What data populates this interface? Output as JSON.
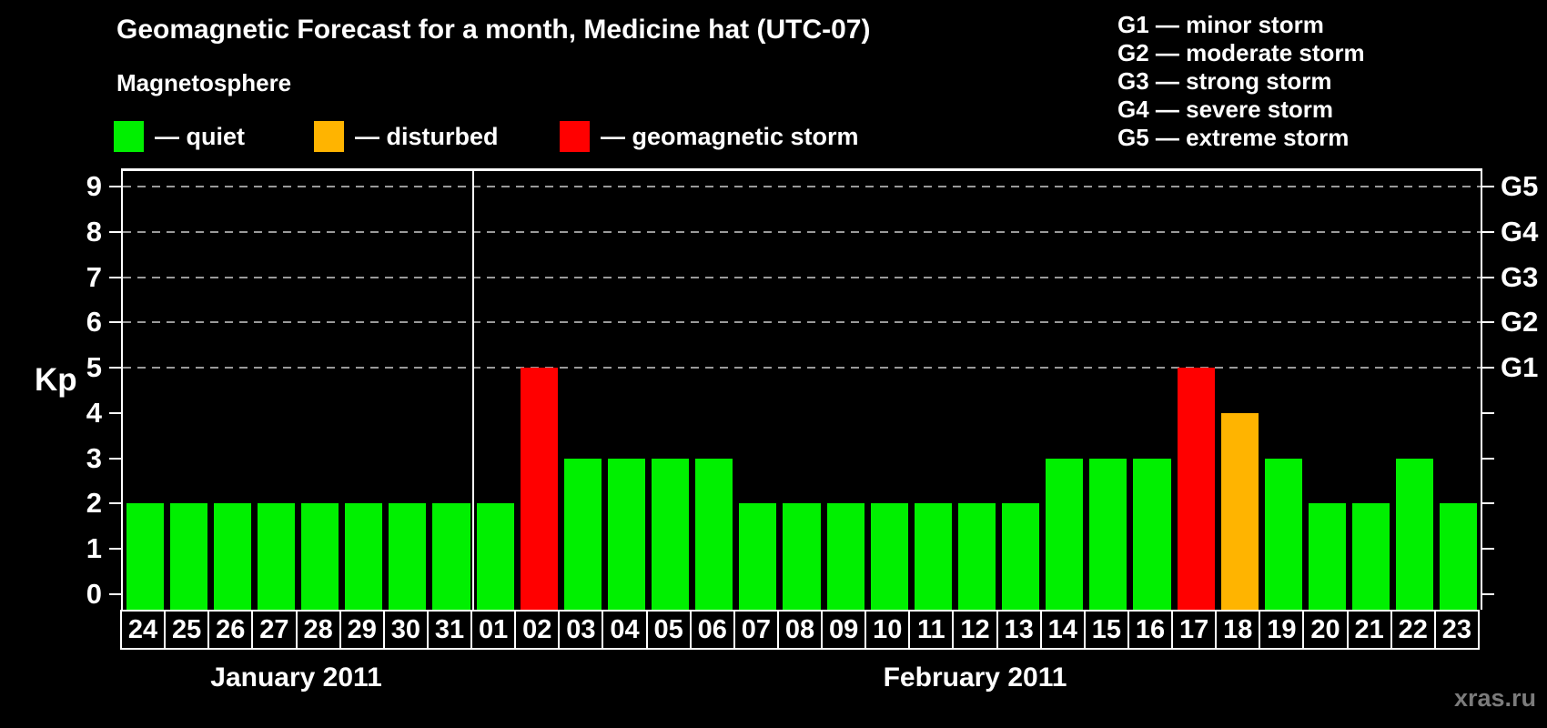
{
  "title": "Geomagnetic Forecast for a month, Medicine hat (UTC-07)",
  "subtitle": "Magnetosphere",
  "legend": [
    {
      "key": "quiet",
      "label": "— quiet"
    },
    {
      "key": "disturbed",
      "label": "— disturbed"
    },
    {
      "key": "storm",
      "label": "— geomagnetic storm"
    }
  ],
  "g_legend": [
    "G1 — minor storm",
    "G2 — moderate storm",
    "G3 — strong storm",
    "G4 — severe storm",
    "G5 — extreme storm"
  ],
  "watermark": "xras.ru",
  "chart_data": {
    "type": "bar",
    "title": "Geomagnetic Forecast for a month, Medicine hat (UTC-07)",
    "ylabel": "Kp",
    "ylim": [
      0,
      9
    ],
    "yticks": [
      0,
      1,
      2,
      3,
      4,
      5,
      6,
      7,
      8,
      9
    ],
    "gridlines_at": [
      5,
      6,
      7,
      8,
      9
    ],
    "grid": "dashed-horizontal",
    "legend_position": "top",
    "categories": [
      "24",
      "25",
      "26",
      "27",
      "28",
      "29",
      "30",
      "31",
      "01",
      "02",
      "03",
      "04",
      "05",
      "06",
      "07",
      "08",
      "09",
      "10",
      "11",
      "12",
      "13",
      "14",
      "15",
      "16",
      "17",
      "18",
      "19",
      "20",
      "21",
      "22",
      "23"
    ],
    "values": [
      2,
      2,
      2,
      2,
      2,
      2,
      2,
      2,
      2,
      5,
      3,
      3,
      3,
      3,
      2,
      2,
      2,
      2,
      2,
      2,
      2,
      3,
      3,
      3,
      5,
      4,
      3,
      2,
      2,
      3,
      2
    ],
    "month_groups": [
      {
        "label": "January 2011",
        "count": 8
      },
      {
        "label": "February 2011",
        "count": 23
      }
    ],
    "right_axis": [
      {
        "kp": 5,
        "label": "G1"
      },
      {
        "kp": 6,
        "label": "G2"
      },
      {
        "kp": 7,
        "label": "G3"
      },
      {
        "kp": 8,
        "label": "G4"
      },
      {
        "kp": 9,
        "label": "G5"
      }
    ],
    "color_rules": {
      "quiet_max": 3,
      "disturbed_value": 4,
      "storm_min": 5
    },
    "colors": {
      "quiet": "#00f000",
      "disturbed": "#ffb400",
      "storm": "#ff0000"
    }
  }
}
